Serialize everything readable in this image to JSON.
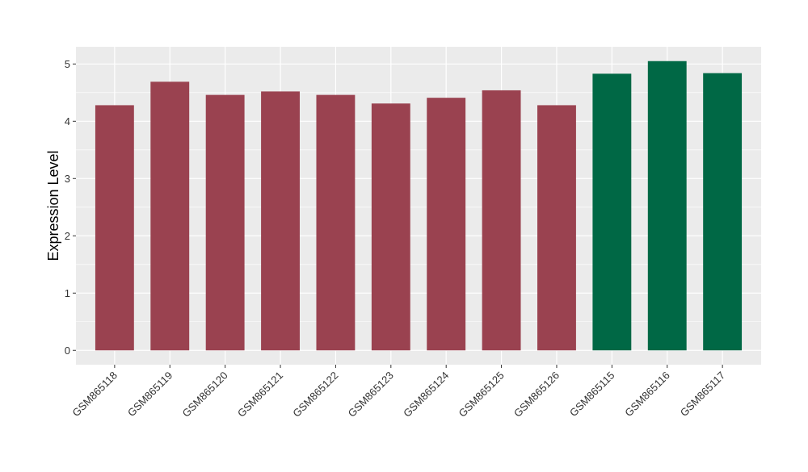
{
  "chart_data": {
    "type": "bar",
    "title": "",
    "xlabel": "",
    "ylabel": "Expression Level",
    "ylim": [
      0,
      5.05
    ],
    "yticks": [
      0,
      1,
      2,
      3,
      4,
      5
    ],
    "grid": true,
    "categories": [
      "GSM865118",
      "GSM865119",
      "GSM865120",
      "GSM865121",
      "GSM865122",
      "GSM865123",
      "GSM865124",
      "GSM865125",
      "GSM865126",
      "GSM865115",
      "GSM865116",
      "GSM865117"
    ],
    "values": [
      4.28,
      4.69,
      4.46,
      4.52,
      4.46,
      4.31,
      4.41,
      4.54,
      4.28,
      4.83,
      5.05,
      4.84
    ],
    "bar_colors": [
      "#9a4250",
      "#9a4250",
      "#9a4250",
      "#9a4250",
      "#9a4250",
      "#9a4250",
      "#9a4250",
      "#9a4250",
      "#9a4250",
      "#006845",
      "#006845",
      "#006845"
    ],
    "panel_background": "#ebebeb",
    "grid_color": "#ffffff"
  }
}
